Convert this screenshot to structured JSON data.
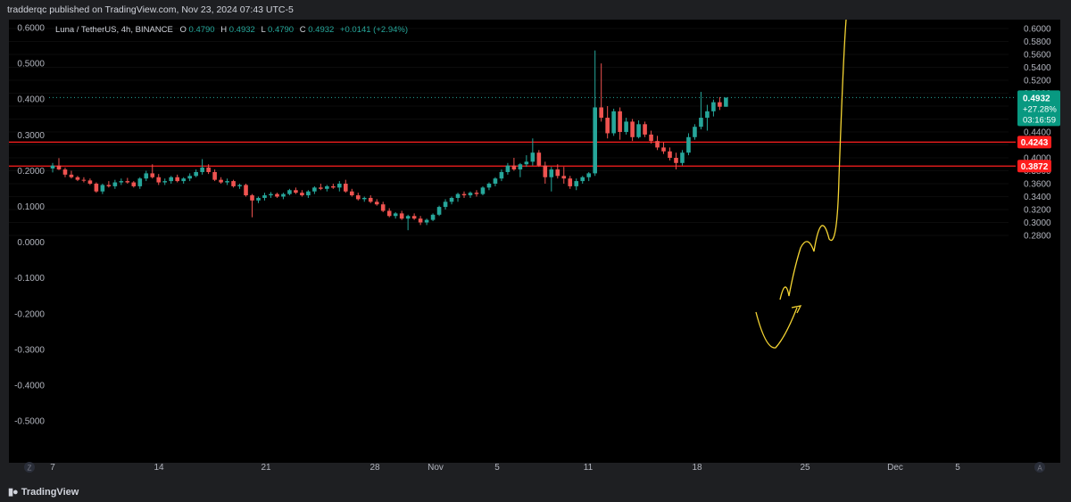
{
  "header": {
    "publisher_line": "tradderqc published on TradingView.com, Nov 23, 2024 07:43 UTC-5"
  },
  "legend": {
    "symbol": "Luna / TetherUS, 4h, BINANCE",
    "o_label": "O",
    "o_value": "0.4790",
    "h_label": "H",
    "h_value": "0.4932",
    "l_label": "L",
    "l_value": "0.4790",
    "c_label": "C",
    "c_value": "0.4932",
    "change": "+0.0141 (+2.94%)"
  },
  "price_badge": {
    "price": "0.4932",
    "change_pct": "+27.28%",
    "countdown": "03:16:59"
  },
  "footer": {
    "logo_text": "TradingView",
    "left_scale_button": "Z",
    "right_scale_button": "A"
  },
  "colors": {
    "background": "#000000",
    "up": "#26a69a",
    "down": "#ef5350",
    "level_line": "#ff1e1e",
    "drawing": "#f5d533",
    "axis_text": "#b2b5be",
    "badge_bg": "#089981"
  },
  "chart_data": {
    "type": "candlestick",
    "title": "Luna / TetherUS, 4h, BINANCE",
    "right_axis_ticks": [
      "0.6000",
      "0.5800",
      "0.5600",
      "0.5400",
      "0.5200",
      "0.5000",
      "0.4800",
      "0.4600",
      "0.4400",
      "0.4200",
      "0.4000",
      "0.3800",
      "0.3600",
      "0.3400",
      "0.3200",
      "0.3000",
      "0.2800"
    ],
    "left_axis_ticks": [
      "0.6000",
      "0.5000",
      "0.4000",
      "0.3000",
      "0.2000",
      "0.1000",
      "0.0000",
      "-0.1000",
      "-0.2000",
      "-0.3000",
      "-0.4000",
      "-0.5000"
    ],
    "x_tick_labels": [
      "7",
      "14",
      "21",
      "28",
      "Nov",
      "5",
      "11",
      "18",
      "25",
      "Dec",
      "5"
    ],
    "horizontal_levels": [
      {
        "price": 0.4243,
        "label": "0.4243"
      },
      {
        "price": 0.3872,
        "label": "0.3872"
      }
    ],
    "last_price": 0.4932,
    "series": [
      {
        "name": "Luna / TetherUS",
        "ohlc": [
          [
            0.3835,
            0.392,
            0.3775,
            0.388
          ],
          [
            0.388,
            0.3995,
            0.381,
            0.382
          ],
          [
            0.382,
            0.385,
            0.37,
            0.374
          ],
          [
            0.374,
            0.38,
            0.368,
            0.37
          ],
          [
            0.37,
            0.372,
            0.364,
            0.366
          ],
          [
            0.366,
            0.37,
            0.362,
            0.365
          ],
          [
            0.365,
            0.368,
            0.358,
            0.36
          ],
          [
            0.36,
            0.362,
            0.346,
            0.348
          ],
          [
            0.348,
            0.36,
            0.344,
            0.358
          ],
          [
            0.358,
            0.364,
            0.354,
            0.356
          ],
          [
            0.356,
            0.366,
            0.352,
            0.362
          ],
          [
            0.362,
            0.368,
            0.358,
            0.364
          ],
          [
            0.364,
            0.369,
            0.36,
            0.362
          ],
          [
            0.362,
            0.364,
            0.354,
            0.356
          ],
          [
            0.356,
            0.37,
            0.352,
            0.368
          ],
          [
            0.368,
            0.38,
            0.364,
            0.376
          ],
          [
            0.376,
            0.39,
            0.368,
            0.37
          ],
          [
            0.37,
            0.375,
            0.358,
            0.362
          ],
          [
            0.362,
            0.368,
            0.358,
            0.364
          ],
          [
            0.364,
            0.372,
            0.36,
            0.37
          ],
          [
            0.37,
            0.374,
            0.362,
            0.364
          ],
          [
            0.364,
            0.37,
            0.36,
            0.368
          ],
          [
            0.368,
            0.376,
            0.364,
            0.372
          ],
          [
            0.372,
            0.382,
            0.37,
            0.378
          ],
          [
            0.378,
            0.398,
            0.374,
            0.385
          ],
          [
            0.385,
            0.39,
            0.375,
            0.378
          ],
          [
            0.378,
            0.382,
            0.364,
            0.366
          ],
          [
            0.366,
            0.37,
            0.36,
            0.362
          ],
          [
            0.362,
            0.368,
            0.358,
            0.364
          ],
          [
            0.364,
            0.366,
            0.354,
            0.356
          ],
          [
            0.356,
            0.36,
            0.352,
            0.358
          ],
          [
            0.358,
            0.36,
            0.34,
            0.342
          ],
          [
            0.342,
            0.344,
            0.308,
            0.334
          ],
          [
            0.334,
            0.34,
            0.33,
            0.338
          ],
          [
            0.338,
            0.346,
            0.334,
            0.342
          ],
          [
            0.342,
            0.347,
            0.338,
            0.344
          ],
          [
            0.344,
            0.346,
            0.338,
            0.34
          ],
          [
            0.34,
            0.346,
            0.336,
            0.344
          ],
          [
            0.344,
            0.352,
            0.342,
            0.35
          ],
          [
            0.35,
            0.354,
            0.344,
            0.346
          ],
          [
            0.346,
            0.35,
            0.34,
            0.342
          ],
          [
            0.342,
            0.35,
            0.338,
            0.348
          ],
          [
            0.348,
            0.356,
            0.344,
            0.354
          ],
          [
            0.354,
            0.36,
            0.35,
            0.352
          ],
          [
            0.352,
            0.358,
            0.348,
            0.356
          ],
          [
            0.356,
            0.36,
            0.352,
            0.354
          ],
          [
            0.354,
            0.364,
            0.348,
            0.36
          ],
          [
            0.36,
            0.366,
            0.346,
            0.348
          ],
          [
            0.348,
            0.352,
            0.34,
            0.342
          ],
          [
            0.342,
            0.346,
            0.334,
            0.336
          ],
          [
            0.336,
            0.34,
            0.332,
            0.338
          ],
          [
            0.338,
            0.342,
            0.33,
            0.332
          ],
          [
            0.332,
            0.336,
            0.326,
            0.328
          ],
          [
            0.328,
            0.332,
            0.316,
            0.318
          ],
          [
            0.318,
            0.322,
            0.308,
            0.31
          ],
          [
            0.31,
            0.316,
            0.306,
            0.314
          ],
          [
            0.314,
            0.318,
            0.304,
            0.306
          ],
          [
            0.306,
            0.312,
            0.288,
            0.31
          ],
          [
            0.31,
            0.314,
            0.304,
            0.306
          ],
          [
            0.306,
            0.31,
            0.296,
            0.3
          ],
          [
            0.3,
            0.306,
            0.296,
            0.304
          ],
          [
            0.304,
            0.314,
            0.302,
            0.312
          ],
          [
            0.312,
            0.326,
            0.31,
            0.324
          ],
          [
            0.324,
            0.336,
            0.32,
            0.332
          ],
          [
            0.332,
            0.34,
            0.328,
            0.338
          ],
          [
            0.338,
            0.346,
            0.332,
            0.344
          ],
          [
            0.344,
            0.348,
            0.338,
            0.342
          ],
          [
            0.342,
            0.348,
            0.338,
            0.346
          ],
          [
            0.346,
            0.35,
            0.34,
            0.344
          ],
          [
            0.344,
            0.356,
            0.342,
            0.354
          ],
          [
            0.354,
            0.362,
            0.35,
            0.36
          ],
          [
            0.36,
            0.37,
            0.356,
            0.368
          ],
          [
            0.368,
            0.382,
            0.364,
            0.378
          ],
          [
            0.378,
            0.392,
            0.374,
            0.388
          ],
          [
            0.388,
            0.4,
            0.38,
            0.382
          ],
          [
            0.382,
            0.392,
            0.37,
            0.39
          ],
          [
            0.39,
            0.404,
            0.386,
            0.394
          ],
          [
            0.394,
            0.43,
            0.388,
            0.408
          ],
          [
            0.408,
            0.412,
            0.386,
            0.388
          ],
          [
            0.388,
            0.394,
            0.36,
            0.37
          ],
          [
            0.37,
            0.386,
            0.348,
            0.382
          ],
          [
            0.382,
            0.39,
            0.368,
            0.372
          ],
          [
            0.372,
            0.386,
            0.36,
            0.368
          ],
          [
            0.368,
            0.372,
            0.352,
            0.356
          ],
          [
            0.356,
            0.368,
            0.35,
            0.364
          ],
          [
            0.364,
            0.372,
            0.36,
            0.37
          ],
          [
            0.37,
            0.378,
            0.364,
            0.376
          ],
          [
            0.376,
            0.566,
            0.372,
            0.478
          ],
          [
            0.478,
            0.546,
            0.456,
            0.462
          ],
          [
            0.462,
            0.48,
            0.43,
            0.438
          ],
          [
            0.438,
            0.476,
            0.434,
            0.472
          ],
          [
            0.472,
            0.478,
            0.428,
            0.44
          ],
          [
            0.44,
            0.462,
            0.436,
            0.456
          ],
          [
            0.456,
            0.46,
            0.426,
            0.432
          ],
          [
            0.432,
            0.458,
            0.43,
            0.452
          ],
          [
            0.452,
            0.456,
            0.432,
            0.436
          ],
          [
            0.436,
            0.442,
            0.422,
            0.426
          ],
          [
            0.426,
            0.434,
            0.412,
            0.416
          ],
          [
            0.416,
            0.424,
            0.406,
            0.41
          ],
          [
            0.41,
            0.416,
            0.396,
            0.4
          ],
          [
            0.4,
            0.408,
            0.382,
            0.392
          ],
          [
            0.392,
            0.412,
            0.388,
            0.408
          ],
          [
            0.408,
            0.438,
            0.404,
            0.432
          ],
          [
            0.432,
            0.452,
            0.428,
            0.448
          ],
          [
            0.448,
            0.502,
            0.444,
            0.462
          ],
          [
            0.462,
            0.482,
            0.442,
            0.472
          ],
          [
            0.472,
            0.49,
            0.464,
            0.486
          ],
          [
            0.486,
            0.494,
            0.474,
            0.479
          ],
          [
            0.479,
            0.4932,
            0.479,
            0.4932
          ]
        ]
      }
    ],
    "drawings": "projected price path (yellow)"
  }
}
